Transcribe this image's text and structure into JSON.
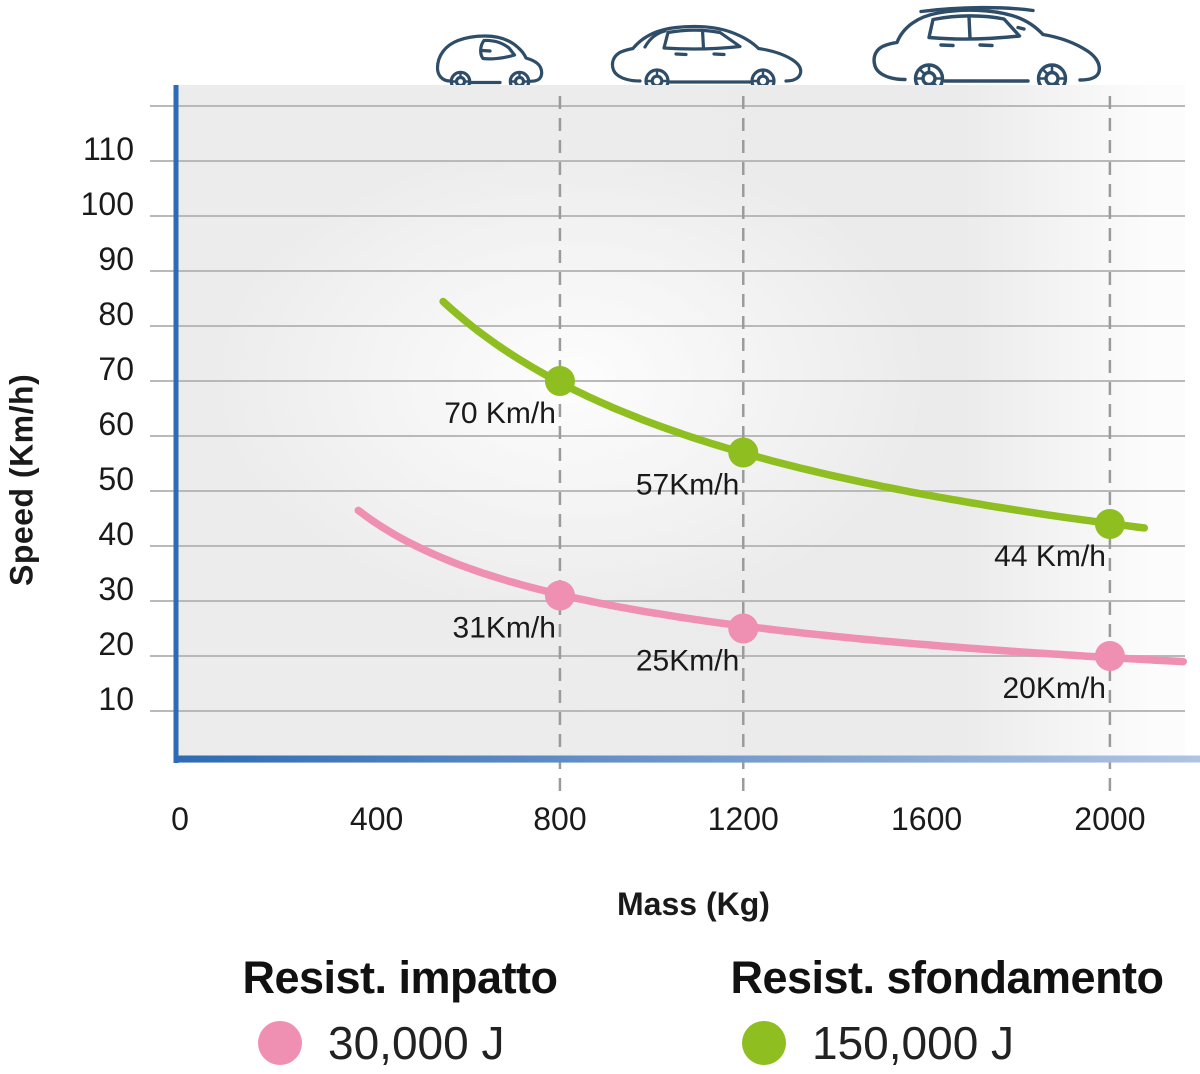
{
  "chart_data": {
    "type": "line",
    "title": "",
    "xlabel": "Mass (Kg)",
    "ylabel": "Speed (Km/h)",
    "xlim": [
      0,
      2200
    ],
    "ylim": [
      0,
      125
    ],
    "grid": true,
    "legend_position": "bottom",
    "x_ticks": [
      0,
      400,
      800,
      1200,
      1600,
      2000
    ],
    "y_ticks": [
      10,
      20,
      30,
      40,
      50,
      60,
      70,
      80,
      90,
      100,
      110
    ],
    "y_gridlines": [
      10,
      20,
      30,
      40,
      50,
      60,
      70,
      80,
      90,
      100,
      110,
      120
    ],
    "dashed_guides_x": [
      800,
      1200,
      2000
    ],
    "series": [
      {
        "name": "Resist. impatto",
        "energy_joules": 30000,
        "color": "#EF8FB1",
        "x_range": [
          360,
          2160
        ],
        "points": [
          {
            "mass": 800,
            "speed": 31,
            "label": "31Km/h"
          },
          {
            "mass": 1200,
            "speed": 25,
            "label": "25Km/h"
          },
          {
            "mass": 2000,
            "speed": 20,
            "label": "20Km/h"
          }
        ]
      },
      {
        "name": "Resist. sfondamento",
        "energy_joules": 150000,
        "color": "#8FBE20",
        "x_range": [
          545,
          2080
        ],
        "points": [
          {
            "mass": 800,
            "speed": 70,
            "label": "70 Km/h"
          },
          {
            "mass": 1200,
            "speed": 57,
            "label": "57Km/h"
          },
          {
            "mass": 2000,
            "speed": 44,
            "label": "44 Km/h"
          }
        ]
      }
    ]
  },
  "legend": {
    "items": [
      {
        "title": "Resist. impatto",
        "value": "30,000 J",
        "color": "#EF8FB1"
      },
      {
        "title": "Resist. sfondamento",
        "value": "150,000 J",
        "color": "#8FBE20"
      }
    ]
  },
  "icons": {
    "cars": [
      "city-car-icon",
      "hatchback-car-icon",
      "suv-car-icon"
    ]
  },
  "colors": {
    "axis_blue": "#2D6BB4",
    "axis_gradient_end": "#AFC4E2",
    "gridline": "#B9B9B9",
    "dashed_guide": "#9B9B9B",
    "car_line": "#2E4D68",
    "text": "#1A1A1A"
  }
}
